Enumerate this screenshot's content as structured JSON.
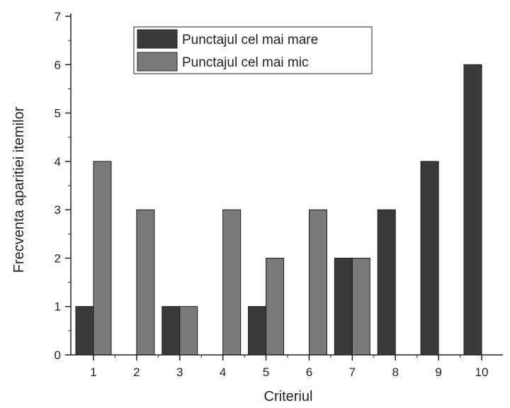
{
  "chart_data": {
    "type": "bar",
    "title": "",
    "xlabel": "Criteriul",
    "ylabel": "Frecventa aparitiei itemilor",
    "categories": [
      "1",
      "2",
      "3",
      "4",
      "5",
      "6",
      "7",
      "8",
      "9",
      "10"
    ],
    "series": [
      {
        "name": "Punctajul cel mai mare",
        "color": "#3a3a3a",
        "values": [
          1,
          0,
          1,
          0,
          1,
          0,
          2,
          3,
          4,
          6
        ]
      },
      {
        "name": "Punctajul cel mai mic",
        "color": "#7a7a7a",
        "values": [
          4,
          3,
          1,
          3,
          2,
          3,
          2,
          0,
          0,
          0
        ]
      }
    ],
    "ylim": [
      0,
      7
    ],
    "yticks": [
      "0",
      "1",
      "2",
      "3",
      "4",
      "5",
      "6",
      "7"
    ],
    "grid": false,
    "legend_position": "top-left"
  }
}
